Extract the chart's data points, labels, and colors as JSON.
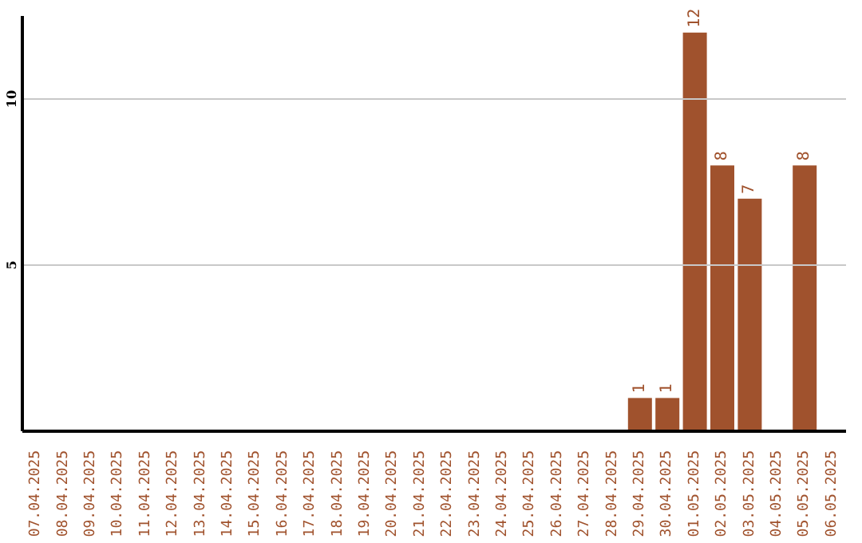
{
  "chart_data": {
    "type": "bar",
    "categories": [
      "07.04.2025",
      "08.04.2025",
      "09.04.2025",
      "10.04.2025",
      "11.04.2025",
      "12.04.2025",
      "13.04.2025",
      "14.04.2025",
      "15.04.2025",
      "16.04.2025",
      "17.04.2025",
      "18.04.2025",
      "19.04.2025",
      "20.04.2025",
      "21.04.2025",
      "22.04.2025",
      "23.04.2025",
      "24.04.2025",
      "25.04.2025",
      "26.04.2025",
      "27.04.2025",
      "28.04.2025",
      "29.04.2025",
      "30.04.2025",
      "01.05.2025",
      "02.05.2025",
      "03.05.2025",
      "04.05.2025",
      "05.05.2025",
      "06.05.2025"
    ],
    "values": [
      0,
      0,
      0,
      0,
      0,
      0,
      0,
      0,
      0,
      0,
      0,
      0,
      0,
      0,
      0,
      0,
      0,
      0,
      0,
      0,
      0,
      0,
      1,
      1,
      12,
      8,
      7,
      0,
      8,
      0
    ],
    "value_labels": [
      null,
      null,
      null,
      null,
      null,
      null,
      null,
      null,
      null,
      null,
      null,
      null,
      null,
      null,
      null,
      null,
      null,
      null,
      null,
      null,
      null,
      null,
      "1",
      "1",
      "12",
      "8",
      "7",
      null,
      "8",
      null
    ],
    "color": "#a0522d",
    "ylim": [
      0,
      12.5
    ],
    "yticks": [
      5,
      10
    ],
    "grid": "y"
  }
}
